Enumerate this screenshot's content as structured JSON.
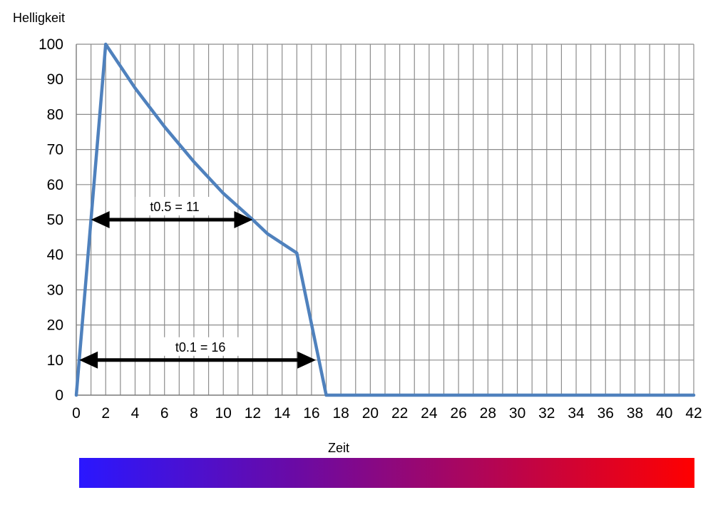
{
  "chart_data": {
    "type": "line",
    "title": "",
    "xlabel": "Zeit",
    "ylabel": "Helligkeit",
    "xlim": [
      0,
      42
    ],
    "ylim": [
      0,
      100
    ],
    "x_ticks": [
      0,
      2,
      4,
      6,
      8,
      10,
      12,
      14,
      16,
      18,
      20,
      22,
      24,
      26,
      28,
      30,
      32,
      34,
      36,
      38,
      40,
      42
    ],
    "y_ticks": [
      0,
      10,
      20,
      30,
      40,
      50,
      60,
      70,
      80,
      90,
      100
    ],
    "grid": true,
    "legend": "none",
    "series": [
      {
        "color": "#4f81bd",
        "x": [
          0,
          2,
          4,
          6,
          8,
          10,
          12,
          13,
          15,
          17,
          42
        ],
        "y": [
          0,
          100,
          87.5,
          76.5,
          66.5,
          57.5,
          50,
          46,
          40.5,
          0,
          0
        ]
      }
    ],
    "annotations": [
      {
        "text": "t0.5 = 11",
        "x_start": 1,
        "x_end": 12,
        "y": 50
      },
      {
        "text": "t0.1 = 16",
        "x_start": 0.2,
        "x_end": 16.3,
        "y": 10
      }
    ],
    "colorbar": {
      "from_color": "#2a17ff",
      "mid_color": "#6a0aa5",
      "to_color": "#ff0000"
    }
  }
}
